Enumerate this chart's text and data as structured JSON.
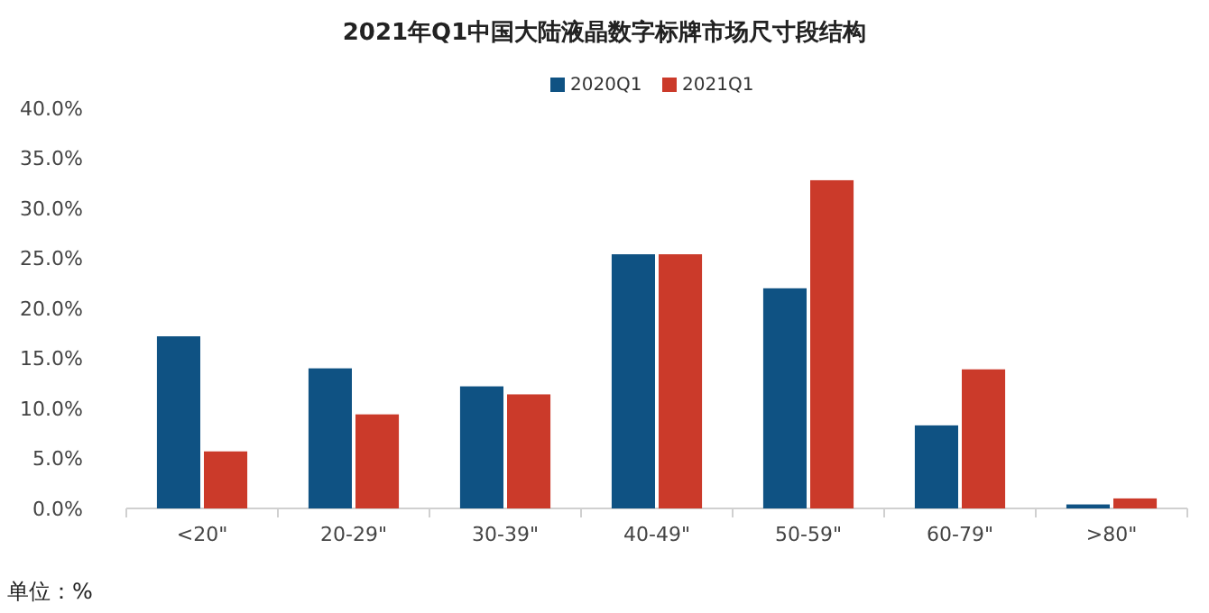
{
  "chart_data": {
    "type": "bar",
    "title": "2021年Q1中国大陆液晶数字标牌市场尺寸段结构",
    "categories": [
      "<20\"",
      "20-29\"",
      "30-39\"",
      "40-49\"",
      "50-59\"",
      "60-79\"",
      ">80\""
    ],
    "series": [
      {
        "name": "2020Q1",
        "color": "#0f5283",
        "values": [
          17.2,
          14.0,
          12.2,
          25.4,
          22.0,
          8.3,
          0.4
        ]
      },
      {
        "name": "2021Q1",
        "color": "#cb3a2a",
        "values": [
          5.7,
          9.4,
          11.4,
          25.4,
          32.8,
          13.9,
          1.0
        ]
      }
    ],
    "ylim": [
      0,
      40
    ],
    "yticks": [
      {
        "value": 0,
        "label": "0.0%"
      },
      {
        "value": 5,
        "label": "5.0%"
      },
      {
        "value": 10,
        "label": "10.0%"
      },
      {
        "value": 15,
        "label": "15.0%"
      },
      {
        "value": 20,
        "label": "20.0%"
      },
      {
        "value": 25,
        "label": "25.0%"
      },
      {
        "value": 30,
        "label": "30.0%"
      },
      {
        "value": 35,
        "label": "35.0%"
      },
      {
        "value": 40,
        "label": "40.0%"
      }
    ],
    "grid": false,
    "legend": "top right",
    "annotations": [
      "单位：%"
    ]
  }
}
